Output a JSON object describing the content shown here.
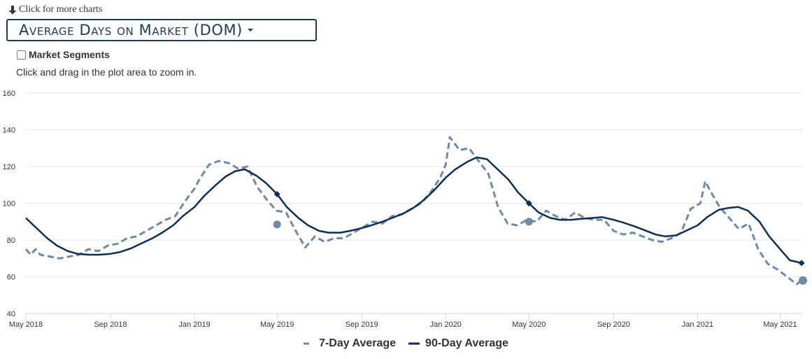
{
  "header": {
    "more_charts": "Click for more charts",
    "chart_select": "Average Days on Market (DOM)",
    "segments_label": "Market Segments",
    "zoom_hint": "Click and drag in the plot area to zoom in."
  },
  "colors": {
    "accent": "#1c3a5a",
    "series_7day": "#6f8aa4",
    "series_90day": "#0d2e57"
  },
  "chart_data": {
    "type": "line",
    "title": "",
    "xlabel": "",
    "ylabel": "",
    "xlim": [
      "2018-05-01",
      "2021-06-03"
    ],
    "ylim": [
      40,
      160
    ],
    "yticks": [
      40,
      60,
      80,
      100,
      120,
      140,
      160
    ],
    "xticks": [
      {
        "date": "2018-05-01",
        "label": "May 2018"
      },
      {
        "date": "2018-09-01",
        "label": "Sep 2018"
      },
      {
        "date": "2019-01-01",
        "label": "Jan 2019"
      },
      {
        "date": "2019-05-01",
        "label": "May 2019"
      },
      {
        "date": "2019-09-01",
        "label": "Sep 2019"
      },
      {
        "date": "2020-01-01",
        "label": "Jan 2020"
      },
      {
        "date": "2020-05-01",
        "label": "May 2020"
      },
      {
        "date": "2020-09-01",
        "label": "Sep 2020"
      },
      {
        "date": "2021-01-01",
        "label": "Jan 2021"
      },
      {
        "date": "2021-05-01",
        "label": "May 2021"
      }
    ],
    "grid": true,
    "legend": "bottom",
    "series": [
      {
        "name": "7-Day Average",
        "style": "dashed",
        "x": [
          "2018-05-01",
          "2018-05-08",
          "2018-05-15",
          "2018-05-22",
          "2018-06-05",
          "2018-06-19",
          "2018-07-03",
          "2018-07-17",
          "2018-07-31",
          "2018-08-14",
          "2018-08-28",
          "2018-09-11",
          "2018-09-25",
          "2018-10-09",
          "2018-10-23",
          "2018-11-06",
          "2018-11-20",
          "2018-12-04",
          "2018-12-18",
          "2019-01-01",
          "2019-01-08",
          "2019-01-22",
          "2019-02-05",
          "2019-02-19",
          "2019-03-05",
          "2019-03-19",
          "2019-04-02",
          "2019-04-16",
          "2019-04-30",
          "2019-05-14",
          "2019-05-28",
          "2019-06-11",
          "2019-06-25",
          "2019-07-09",
          "2019-07-23",
          "2019-08-06",
          "2019-08-20",
          "2019-09-03",
          "2019-09-17",
          "2019-10-01",
          "2019-10-15",
          "2019-10-29",
          "2019-11-12",
          "2019-11-26",
          "2019-12-10",
          "2019-12-24",
          "2020-01-01",
          "2020-01-07",
          "2020-01-21",
          "2020-02-04",
          "2020-02-18",
          "2020-03-03",
          "2020-03-17",
          "2020-03-31",
          "2020-04-14",
          "2020-04-28",
          "2020-05-12",
          "2020-05-26",
          "2020-06-09",
          "2020-06-23",
          "2020-07-07",
          "2020-07-21",
          "2020-08-04",
          "2020-08-18",
          "2020-09-01",
          "2020-09-15",
          "2020-09-29",
          "2020-10-13",
          "2020-10-27",
          "2020-11-10",
          "2020-11-24",
          "2020-12-08",
          "2020-12-22",
          "2021-01-05",
          "2021-01-12",
          "2021-01-19",
          "2021-02-02",
          "2021-02-16",
          "2021-03-02",
          "2021-03-16",
          "2021-03-30",
          "2021-04-13",
          "2021-04-27",
          "2021-05-11",
          "2021-05-25",
          "2021-06-01"
        ],
        "values": [
          75,
          72,
          75,
          72,
          71,
          70,
          71,
          72,
          75,
          74,
          77,
          78,
          81,
          82,
          85,
          88,
          91,
          93,
          101,
          108,
          113,
          121,
          123,
          122,
          119,
          120,
          109,
          102,
          96,
          95,
          85,
          76,
          82,
          79,
          81,
          81,
          84,
          87,
          90,
          89,
          93,
          94,
          97,
          100,
          106,
          114,
          121,
          136,
          129,
          130,
          123,
          116,
          98,
          89,
          88,
          91,
          90,
          96,
          93,
          91,
          95,
          92,
          91,
          91,
          85,
          83,
          84,
          82,
          80,
          79,
          81,
          84,
          97,
          100,
          112,
          107,
          98,
          92,
          86,
          89,
          75,
          67,
          64,
          60,
          56,
          58
        ],
        "highlight": {
          "date": "2021-06-03",
          "value": 58
        },
        "markers": [
          {
            "date": "2019-05-01",
            "value": 88.5
          },
          {
            "date": "2020-05-01",
            "value": 90
          }
        ]
      },
      {
        "name": "90-Day Average",
        "style": "solid",
        "x": [
          "2018-05-01",
          "2018-05-15",
          "2018-06-01",
          "2018-06-15",
          "2018-07-01",
          "2018-07-15",
          "2018-08-01",
          "2018-08-15",
          "2018-09-01",
          "2018-09-15",
          "2018-10-01",
          "2018-10-15",
          "2018-11-01",
          "2018-11-15",
          "2018-12-01",
          "2018-12-15",
          "2019-01-01",
          "2019-01-15",
          "2019-02-01",
          "2019-02-15",
          "2019-03-01",
          "2019-03-15",
          "2019-04-01",
          "2019-04-15",
          "2019-05-01",
          "2019-05-15",
          "2019-06-01",
          "2019-06-15",
          "2019-07-01",
          "2019-07-15",
          "2019-08-01",
          "2019-08-15",
          "2019-09-01",
          "2019-09-15",
          "2019-10-01",
          "2019-10-15",
          "2019-11-01",
          "2019-11-15",
          "2019-12-01",
          "2019-12-15",
          "2020-01-01",
          "2020-01-15",
          "2020-02-01",
          "2020-02-15",
          "2020-03-01",
          "2020-03-15",
          "2020-04-01",
          "2020-04-15",
          "2020-05-01",
          "2020-05-15",
          "2020-06-01",
          "2020-06-15",
          "2020-07-01",
          "2020-07-15",
          "2020-08-01",
          "2020-08-15",
          "2020-09-01",
          "2020-09-15",
          "2020-10-01",
          "2020-10-15",
          "2020-11-01",
          "2020-11-15",
          "2020-12-01",
          "2020-12-15",
          "2021-01-01",
          "2021-01-15",
          "2021-02-01",
          "2021-02-15",
          "2021-03-01",
          "2021-03-15",
          "2021-04-01",
          "2021-04-15",
          "2021-05-01",
          "2021-05-15",
          "2021-06-01"
        ],
        "values": [
          92,
          87,
          81,
          77,
          74,
          72.5,
          72,
          72,
          72.5,
          73.5,
          75.5,
          78,
          81,
          84,
          88,
          93,
          98,
          104,
          110,
          114.5,
          117.5,
          118.5,
          115,
          111,
          105,
          98,
          92,
          88,
          85,
          84,
          84,
          85,
          86.5,
          88,
          90,
          92,
          94.5,
          97.5,
          102,
          107,
          114,
          118.5,
          122.5,
          125,
          124,
          119,
          113,
          106,
          100,
          95,
          92,
          91,
          91,
          91.5,
          92,
          92.5,
          91,
          89.5,
          87.5,
          85.5,
          83,
          82,
          82.5,
          85,
          88,
          92.5,
          96.5,
          97.5,
          98,
          96,
          90,
          82,
          75,
          69,
          67.5
        ],
        "markers": [
          {
            "date": "2019-05-01",
            "value": 105
          },
          {
            "date": "2020-05-01",
            "value": 100
          },
          {
            "date": "2021-06-01",
            "value": 67.5
          }
        ]
      }
    ]
  }
}
